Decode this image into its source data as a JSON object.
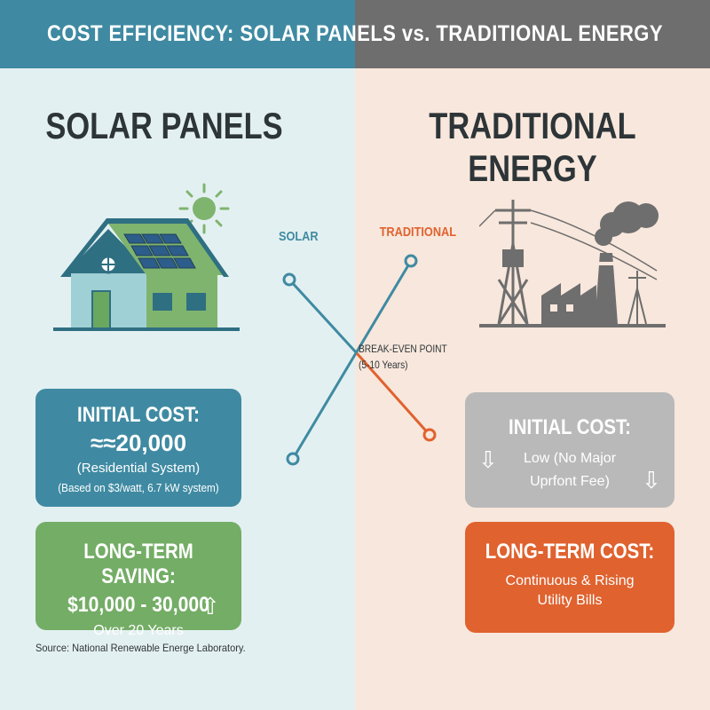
{
  "header": {
    "title": "COST EFFICIENCY: SOLAR PANELS vs. TRADITIONAL ENERGY"
  },
  "solar": {
    "heading": "SOLAR PANELS",
    "initial_cost": {
      "title": "INITIAL COST:",
      "value": "≈≈20,000",
      "subtitle": "(Residential System)",
      "note": "(Based on $3/watt, 6.7 kW system)"
    },
    "long_term": {
      "title": "LONG-TERM SAVING:",
      "value": "$10,000 - 30,000",
      "subtitle": "Over 20 Years",
      "icon": "arrow-up-icon"
    }
  },
  "traditional": {
    "heading": "TRADITIONAL ENERGY",
    "initial_cost": {
      "title": "INITIAL COST:",
      "line1": "Low (No Major",
      "line2": "Uprfont Fee)",
      "icon": "arrow-down-icon"
    },
    "long_term": {
      "title": "LONG-TERM COST:",
      "line1": "Continuous & Rising",
      "line2": "Utility Bills"
    }
  },
  "graph": {
    "solar_label": "SOLAR",
    "traditional_label": "TRADITIONAL",
    "break_even_label": "BREAK-EVEN POINT",
    "break_even_years": "(5-10 Years)"
  },
  "source": "Source: National Renewable Energe Laboratory.",
  "colors": {
    "solar": "#3f8aa2",
    "traditional": "#e0622f",
    "saving": "#74ad66",
    "neutral": "#b9b9b9"
  }
}
